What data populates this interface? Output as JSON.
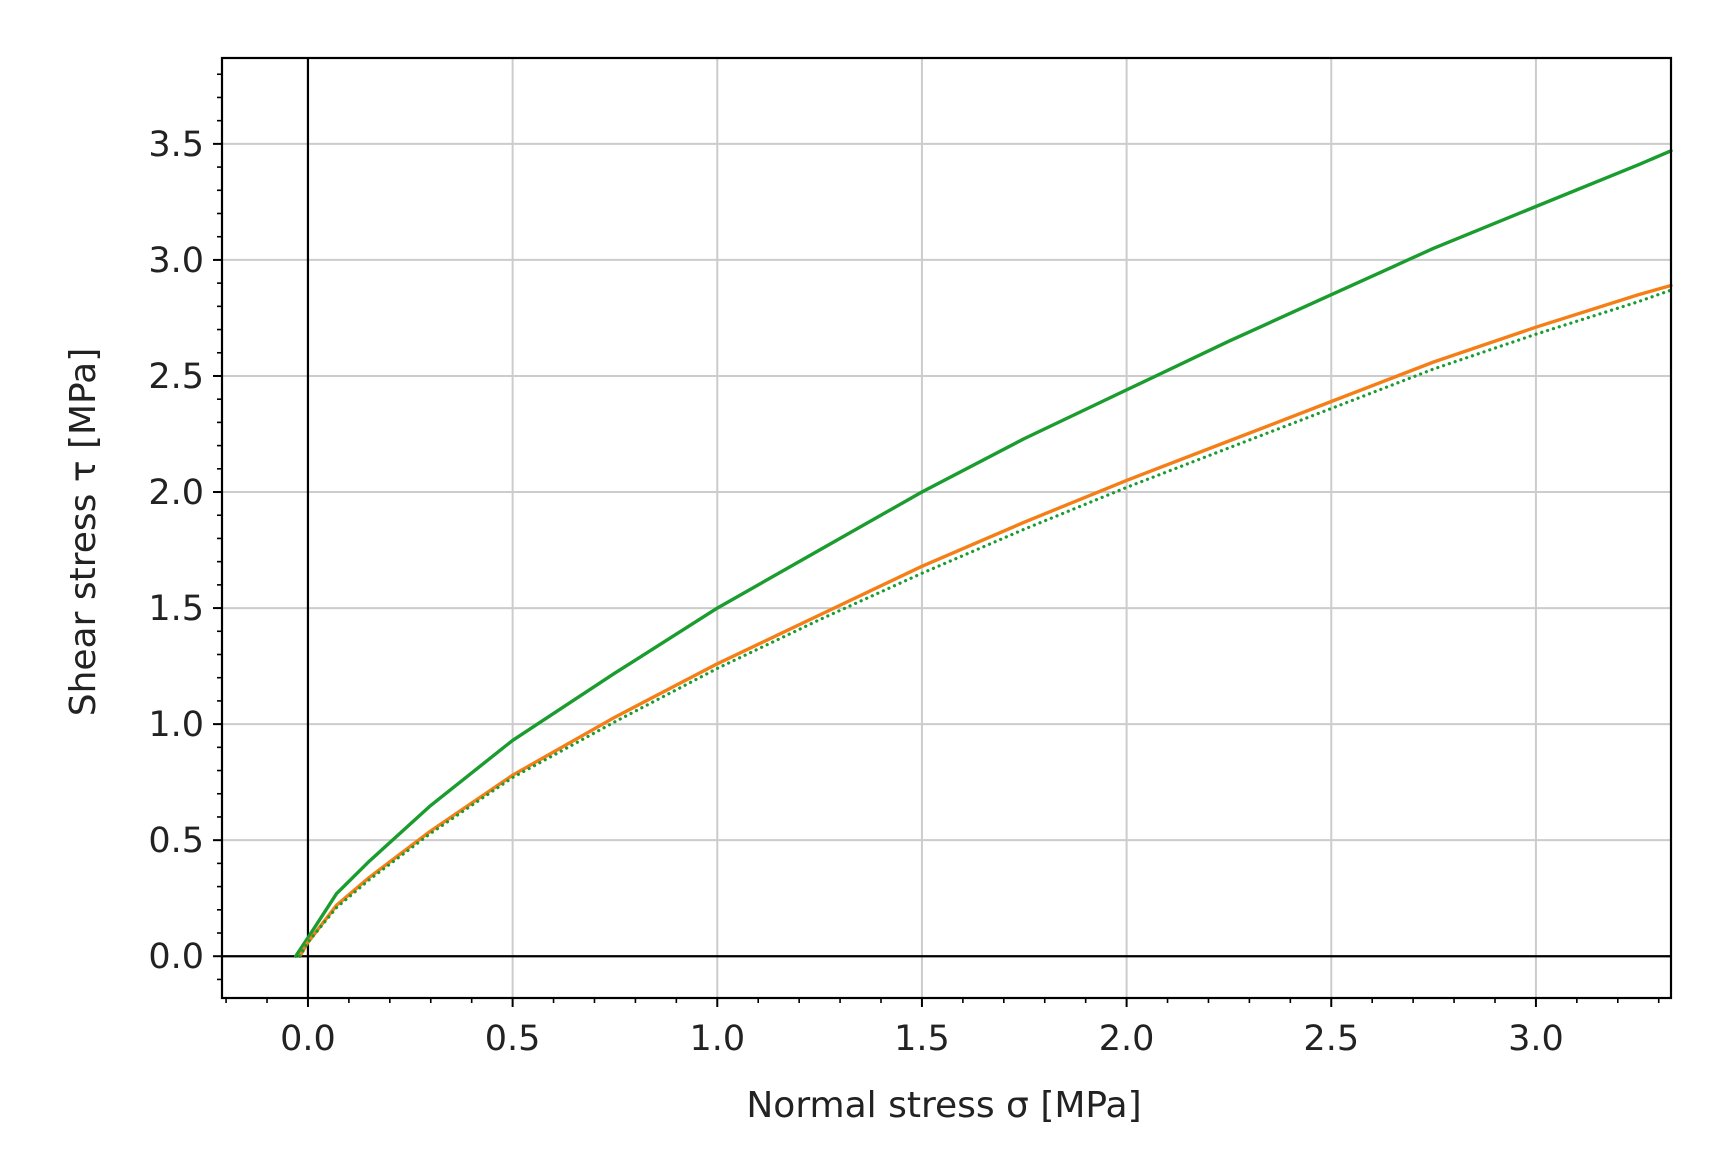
{
  "chart_data": {
    "type": "line",
    "title": "",
    "xlabel": "Normal stress σ [MPa]",
    "ylabel": "Shear stress τ [MPa]",
    "xlim": [
      -0.21,
      3.33
    ],
    "ylim": [
      -0.18,
      3.87
    ],
    "x_ticks": [
      0.0,
      0.5,
      1.0,
      1.5,
      2.0,
      2.5,
      3.0
    ],
    "y_ticks": [
      0.0,
      0.5,
      1.0,
      1.5,
      2.0,
      2.5,
      3.0,
      3.5
    ],
    "x_tick_labels": [
      "0.0",
      "0.5",
      "1.0",
      "1.5",
      "2.0",
      "2.5",
      "3.0"
    ],
    "y_tick_labels": [
      "0.0",
      "0.5",
      "1.0",
      "1.5",
      "2.0",
      "2.5",
      "3.0",
      "3.5"
    ],
    "grid": true,
    "legend": "none",
    "series": [
      {
        "color": "#1a9c2e",
        "style": "solid",
        "x": [
          -0.03,
          0.0,
          0.07,
          0.15,
          0.3,
          0.5,
          0.75,
          1.0,
          1.25,
          1.5,
          1.75,
          2.0,
          2.25,
          2.5,
          2.75,
          3.0,
          3.25,
          3.33
        ],
        "y": [
          0.0,
          0.08,
          0.27,
          0.41,
          0.65,
          0.93,
          1.22,
          1.5,
          1.75,
          2.0,
          2.23,
          2.44,
          2.65,
          2.85,
          3.05,
          3.23,
          3.41,
          3.47
        ]
      },
      {
        "color": "#f57f17",
        "style": "solid",
        "x": [
          -0.02,
          0.0,
          0.07,
          0.15,
          0.3,
          0.5,
          0.75,
          1.0,
          1.25,
          1.5,
          1.75,
          2.0,
          2.25,
          2.5,
          2.75,
          3.0,
          3.25,
          3.33
        ],
        "y": [
          0.0,
          0.06,
          0.22,
          0.34,
          0.54,
          0.78,
          1.03,
          1.26,
          1.47,
          1.68,
          1.87,
          2.05,
          2.22,
          2.39,
          2.56,
          2.71,
          2.85,
          2.89
        ]
      },
      {
        "color": "#1a9c2e",
        "style": "dotted",
        "x": [
          -0.02,
          0.0,
          0.07,
          0.15,
          0.3,
          0.5,
          0.75,
          1.0,
          1.25,
          1.5,
          1.75,
          2.0,
          2.25,
          2.5,
          2.75,
          3.0,
          3.25,
          3.33
        ],
        "y": [
          0.0,
          0.06,
          0.21,
          0.33,
          0.53,
          0.77,
          1.01,
          1.24,
          1.45,
          1.65,
          1.84,
          2.02,
          2.19,
          2.36,
          2.53,
          2.68,
          2.82,
          2.87
        ]
      }
    ]
  }
}
